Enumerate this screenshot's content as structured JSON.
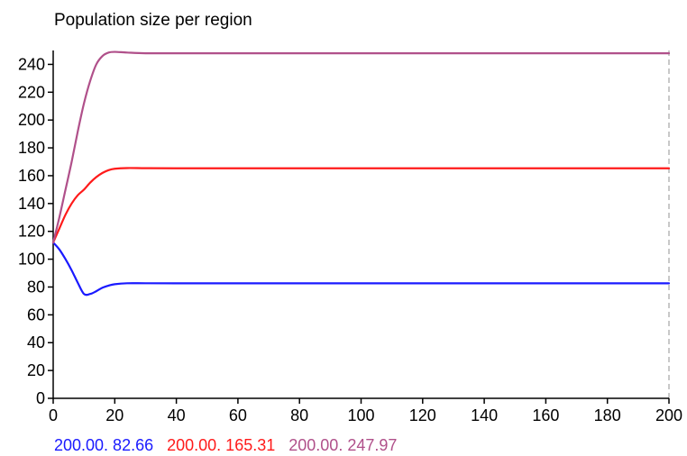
{
  "chart_data": {
    "type": "line",
    "title": "Population size per region",
    "xlabel": "",
    "ylabel": "",
    "xlim": [
      0,
      200
    ],
    "ylim": [
      0,
      250
    ],
    "x_ticks": [
      0,
      20,
      40,
      60,
      80,
      100,
      120,
      140,
      160,
      180,
      200
    ],
    "y_ticks": [
      0,
      20,
      40,
      60,
      80,
      100,
      120,
      140,
      160,
      180,
      200,
      220,
      240
    ],
    "grid": false,
    "cursor_x": 200,
    "series": [
      {
        "color": "#1a1aff",
        "x": [
          0,
          2,
          4,
          6,
          8,
          10,
          12,
          14,
          16,
          18,
          20,
          24,
          30,
          40,
          60,
          100,
          200
        ],
        "y": [
          112,
          107,
          100,
          92,
          83,
          75,
          75,
          77,
          79.5,
          81,
          82,
          82.7,
          82.7,
          82.66,
          82.66,
          82.66,
          82.66
        ]
      },
      {
        "color": "#ff1a1a",
        "x": [
          0,
          2,
          4,
          6,
          8,
          10,
          12,
          14,
          16,
          18,
          20,
          24,
          30,
          40,
          60,
          100,
          200
        ],
        "y": [
          112,
          122,
          132,
          140,
          146,
          150,
          155,
          159,
          162,
          164,
          165,
          165.5,
          165.4,
          165.31,
          165.31,
          165.31,
          165.31
        ]
      },
      {
        "color": "#b0508a",
        "x": [
          0,
          2,
          4,
          6,
          8,
          10,
          12,
          14,
          16,
          18,
          20,
          24,
          30,
          40,
          60,
          100,
          200
        ],
        "y": [
          112,
          130,
          150,
          170,
          192,
          212,
          228,
          240,
          246,
          248.5,
          249,
          248.5,
          248,
          247.97,
          247.97,
          247.97,
          247.97
        ]
      }
    ],
    "readouts": [
      {
        "text": "200.00. 82.66",
        "color": "#1a1aff"
      },
      {
        "text": "200.00. 165.31",
        "color": "#ff1a1a"
      },
      {
        "text": "200.00. 247.97",
        "color": "#b0508a"
      }
    ]
  }
}
